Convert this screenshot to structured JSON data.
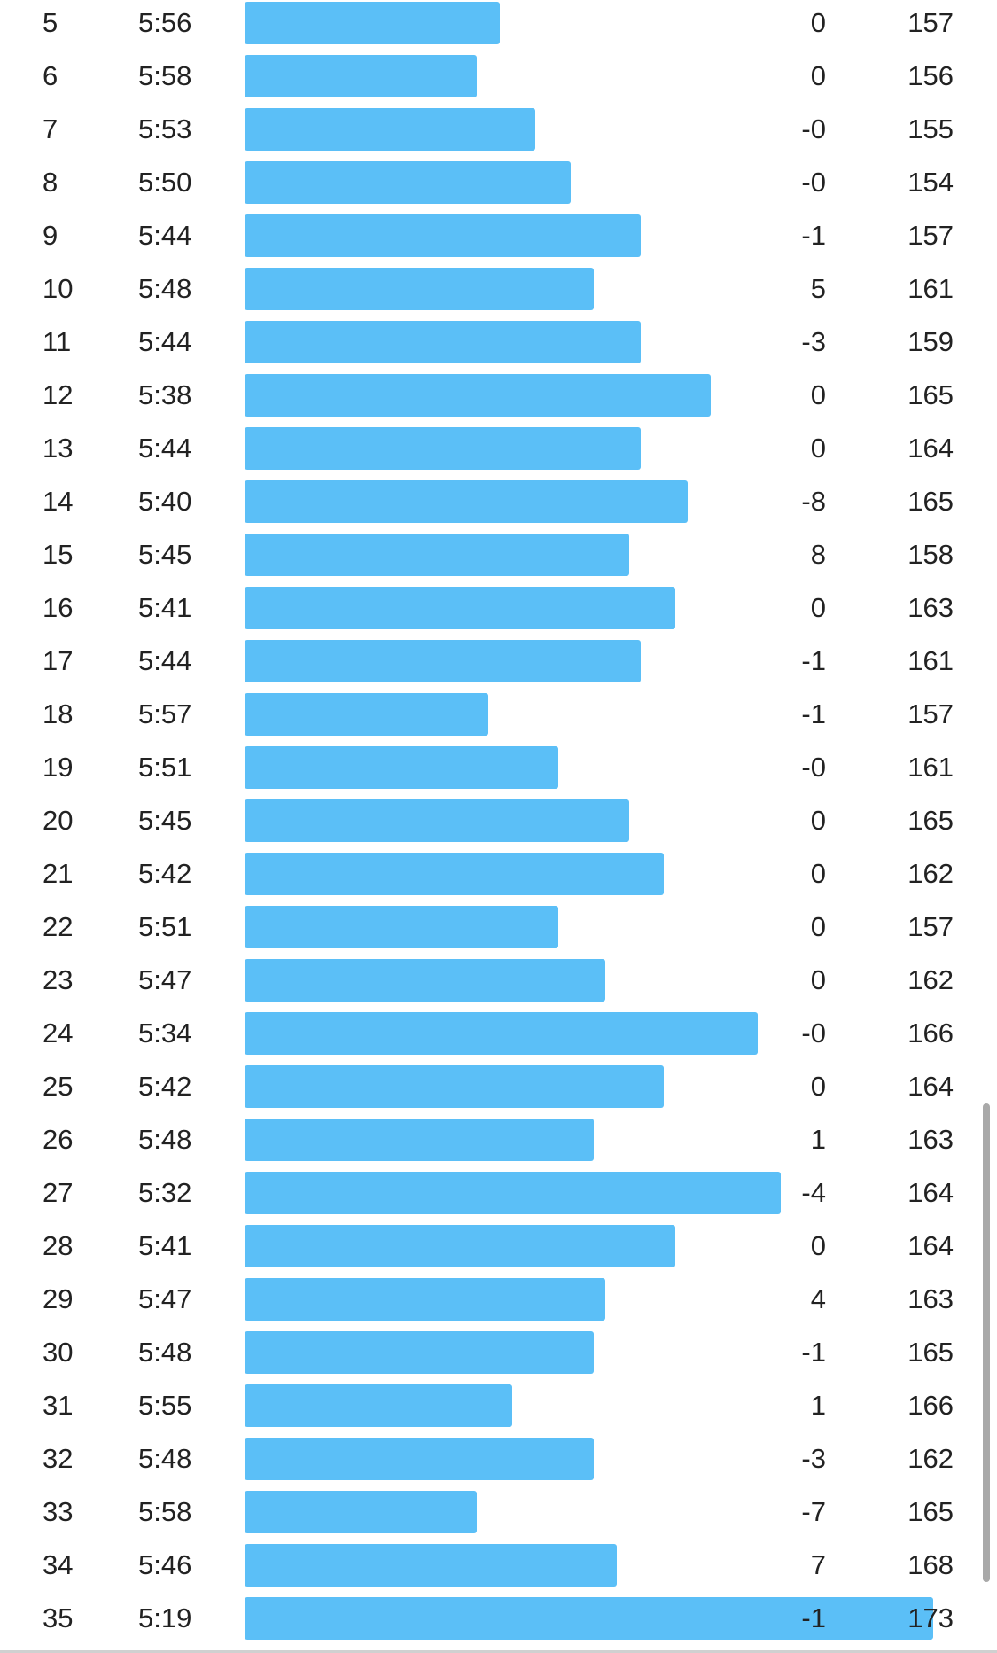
{
  "colors": {
    "pace_bar": "#5bbff7",
    "text": "#222222",
    "background": "#ffffff",
    "scrollbar": "#a9a9a9"
  },
  "pace_scale": {
    "min_seconds": 270,
    "max_seconds": 408
  },
  "splits": [
    {
      "km": "5",
      "pace": "5:56",
      "pace_seconds": 356,
      "elevation": "0",
      "heart_rate": "157"
    },
    {
      "km": "6",
      "pace": "5:58",
      "pace_seconds": 358,
      "elevation": "0",
      "heart_rate": "156"
    },
    {
      "km": "7",
      "pace": "5:53",
      "pace_seconds": 353,
      "elevation": "-0",
      "heart_rate": "155"
    },
    {
      "km": "8",
      "pace": "5:50",
      "pace_seconds": 350,
      "elevation": "-0",
      "heart_rate": "154"
    },
    {
      "km": "9",
      "pace": "5:44",
      "pace_seconds": 344,
      "elevation": "-1",
      "heart_rate": "157"
    },
    {
      "km": "10",
      "pace": "5:48",
      "pace_seconds": 348,
      "elevation": "5",
      "heart_rate": "161"
    },
    {
      "km": "11",
      "pace": "5:44",
      "pace_seconds": 344,
      "elevation": "-3",
      "heart_rate": "159"
    },
    {
      "km": "12",
      "pace": "5:38",
      "pace_seconds": 338,
      "elevation": "0",
      "heart_rate": "165"
    },
    {
      "km": "13",
      "pace": "5:44",
      "pace_seconds": 344,
      "elevation": "0",
      "heart_rate": "164"
    },
    {
      "km": "14",
      "pace": "5:40",
      "pace_seconds": 340,
      "elevation": "-8",
      "heart_rate": "165"
    },
    {
      "km": "15",
      "pace": "5:45",
      "pace_seconds": 345,
      "elevation": "8",
      "heart_rate": "158"
    },
    {
      "km": "16",
      "pace": "5:41",
      "pace_seconds": 341,
      "elevation": "0",
      "heart_rate": "163"
    },
    {
      "km": "17",
      "pace": "5:44",
      "pace_seconds": 344,
      "elevation": "-1",
      "heart_rate": "161"
    },
    {
      "km": "18",
      "pace": "5:57",
      "pace_seconds": 357,
      "elevation": "-1",
      "heart_rate": "157"
    },
    {
      "km": "19",
      "pace": "5:51",
      "pace_seconds": 351,
      "elevation": "-0",
      "heart_rate": "161"
    },
    {
      "km": "20",
      "pace": "5:45",
      "pace_seconds": 345,
      "elevation": "0",
      "heart_rate": "165"
    },
    {
      "km": "21",
      "pace": "5:42",
      "pace_seconds": 342,
      "elevation": "0",
      "heart_rate": "162"
    },
    {
      "km": "22",
      "pace": "5:51",
      "pace_seconds": 351,
      "elevation": "0",
      "heart_rate": "157"
    },
    {
      "km": "23",
      "pace": "5:47",
      "pace_seconds": 347,
      "elevation": "0",
      "heart_rate": "162"
    },
    {
      "km": "24",
      "pace": "5:34",
      "pace_seconds": 334,
      "elevation": "-0",
      "heart_rate": "166"
    },
    {
      "km": "25",
      "pace": "5:42",
      "pace_seconds": 342,
      "elevation": "0",
      "heart_rate": "164"
    },
    {
      "km": "26",
      "pace": "5:48",
      "pace_seconds": 348,
      "elevation": "1",
      "heart_rate": "163"
    },
    {
      "km": "27",
      "pace": "5:32",
      "pace_seconds": 332,
      "elevation": "-4",
      "heart_rate": "164"
    },
    {
      "km": "28",
      "pace": "5:41",
      "pace_seconds": 341,
      "elevation": "0",
      "heart_rate": "164"
    },
    {
      "km": "29",
      "pace": "5:47",
      "pace_seconds": 347,
      "elevation": "4",
      "heart_rate": "163"
    },
    {
      "km": "30",
      "pace": "5:48",
      "pace_seconds": 348,
      "elevation": "-1",
      "heart_rate": "165"
    },
    {
      "km": "31",
      "pace": "5:55",
      "pace_seconds": 355,
      "elevation": "1",
      "heart_rate": "166"
    },
    {
      "km": "32",
      "pace": "5:48",
      "pace_seconds": 348,
      "elevation": "-3",
      "heart_rate": "162"
    },
    {
      "km": "33",
      "pace": "5:58",
      "pace_seconds": 358,
      "elevation": "-7",
      "heart_rate": "165"
    },
    {
      "km": "34",
      "pace": "5:46",
      "pace_seconds": 346,
      "elevation": "7",
      "heart_rate": "168"
    },
    {
      "km": "35",
      "pace": "5:19",
      "pace_seconds": 319,
      "elevation": "-1",
      "heart_rate": "173"
    }
  ]
}
